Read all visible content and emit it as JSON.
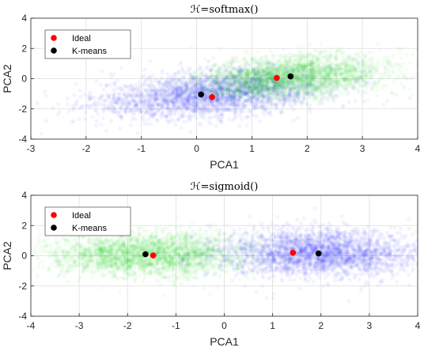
{
  "chart_data": [
    {
      "type": "scatter",
      "title": "ℋ=softmax()",
      "xlabel": "PCA1",
      "ylabel": "PCA2",
      "xlim": [
        -3,
        4
      ],
      "ylim": [
        -4,
        4
      ],
      "xticks": [
        -3,
        -2,
        -1,
        0,
        1,
        2,
        3,
        4
      ],
      "yticks": [
        -4,
        -2,
        0,
        2,
        4
      ],
      "grid": true,
      "legend_position": "top-left",
      "clouds": [
        {
          "color": "#0000ff",
          "center": [
            0.3,
            -1.0
          ],
          "spread": [
            1.05,
            0.75
          ],
          "tilt": 0.28
        },
        {
          "color": "#00cc00",
          "center": [
            1.7,
            0.1
          ],
          "spread": [
            0.85,
            0.7
          ],
          "tilt": 0.25
        }
      ],
      "series": [
        {
          "name": "Ideal",
          "color": "#ff0000",
          "points": [
            [
              0.28,
              -1.22
            ],
            [
              1.45,
              0.05
            ]
          ]
        },
        {
          "name": "K-means",
          "color": "#000000",
          "points": [
            [
              0.08,
              -1.05
            ],
            [
              1.7,
              0.15
            ]
          ]
        }
      ]
    },
    {
      "type": "scatter",
      "title": "ℋ=sigmoid()",
      "xlabel": "PCA1",
      "ylabel": "PCA2",
      "xlim": [
        -4,
        4
      ],
      "ylim": [
        -4,
        4
      ],
      "xticks": [
        -4,
        -3,
        -2,
        -1,
        0,
        1,
        2,
        3,
        4
      ],
      "yticks": [
        -4,
        -2,
        0,
        2,
        4
      ],
      "grid": true,
      "legend_position": "top-left",
      "clouds": [
        {
          "color": "#00cc00",
          "center": [
            -1.6,
            0.1
          ],
          "spread": [
            1.05,
            0.75
          ],
          "tilt": 0.0
        },
        {
          "color": "#0000ff",
          "center": [
            1.95,
            0.15
          ],
          "spread": [
            1.05,
            0.8
          ],
          "tilt": -0.05
        }
      ],
      "series": [
        {
          "name": "Ideal",
          "color": "#ff0000",
          "points": [
            [
              -1.47,
              0.02
            ],
            [
              1.42,
              0.2
            ]
          ]
        },
        {
          "name": "K-means",
          "color": "#000000",
          "points": [
            [
              -1.63,
              0.1
            ],
            [
              1.95,
              0.15
            ]
          ]
        }
      ]
    }
  ]
}
